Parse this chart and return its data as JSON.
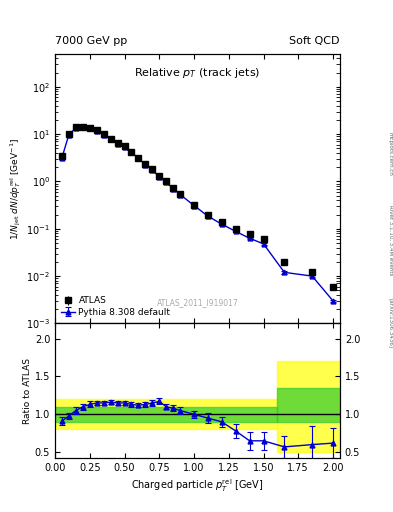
{
  "title_left": "7000 GeV pp",
  "title_right": "Soft QCD",
  "panel_title": "Relative p_{T} (track jets)",
  "xlabel": "Charged particle p_{T}^{rel} [GeV]",
  "ylabel_main": "1/N_{jet} dN/dp_{T}^{rel} [GeV^{-1}]",
  "ylabel_ratio": "Ratio to ATLAS",
  "right_label": "Rivet 3.1.10, 3.4M events",
  "arxiv_label": "[arXiv:1306.3436]",
  "mcplots_label": "mcplots.cern.ch",
  "watermark": "ATLAS_2011_I919017",
  "legend_atlas": "ATLAS",
  "legend_pythia": "Pythia 8.308 default",
  "atlas_x": [
    0.05,
    0.1,
    0.15,
    0.2,
    0.25,
    0.3,
    0.35,
    0.4,
    0.45,
    0.5,
    0.55,
    0.6,
    0.65,
    0.7,
    0.75,
    0.8,
    0.85,
    0.9,
    1.0,
    1.1,
    1.2,
    1.3,
    1.4,
    1.5,
    1.65,
    1.85,
    2.0
  ],
  "atlas_y": [
    3.5,
    10.0,
    14.0,
    14.5,
    13.5,
    12.0,
    10.0,
    8.0,
    6.5,
    5.5,
    4.2,
    3.2,
    2.3,
    1.8,
    1.3,
    1.0,
    0.72,
    0.55,
    0.32,
    0.2,
    0.14,
    0.1,
    0.078,
    0.062,
    0.02,
    0.012,
    0.006
  ],
  "atlas_yerr": [
    0.4,
    0.6,
    0.7,
    0.7,
    0.6,
    0.5,
    0.4,
    0.3,
    0.25,
    0.2,
    0.15,
    0.12,
    0.09,
    0.07,
    0.05,
    0.04,
    0.03,
    0.02,
    0.015,
    0.01,
    0.007,
    0.005,
    0.004,
    0.003,
    0.002,
    0.001,
    0.0006
  ],
  "pythia_x": [
    0.05,
    0.1,
    0.15,
    0.2,
    0.25,
    0.3,
    0.35,
    0.4,
    0.45,
    0.5,
    0.55,
    0.6,
    0.65,
    0.7,
    0.75,
    0.8,
    0.85,
    0.9,
    1.0,
    1.1,
    1.2,
    1.3,
    1.4,
    1.5,
    1.65,
    1.85,
    2.0
  ],
  "pythia_y": [
    3.2,
    9.8,
    13.5,
    14.2,
    13.2,
    11.8,
    9.8,
    7.8,
    6.3,
    5.3,
    4.1,
    3.1,
    2.25,
    1.75,
    1.25,
    0.97,
    0.7,
    0.53,
    0.31,
    0.185,
    0.125,
    0.088,
    0.063,
    0.048,
    0.012,
    0.01,
    0.003
  ],
  "pythia_yerr_lo": [
    0.1,
    0.2,
    0.3,
    0.3,
    0.25,
    0.2,
    0.2,
    0.15,
    0.12,
    0.1,
    0.08,
    0.06,
    0.05,
    0.04,
    0.03,
    0.025,
    0.02,
    0.015,
    0.01,
    0.007,
    0.005,
    0.003,
    0.002,
    0.0015,
    0.0008,
    0.0006,
    0.0002
  ],
  "pythia_yerr_hi": [
    0.1,
    0.2,
    0.3,
    0.3,
    0.25,
    0.2,
    0.2,
    0.15,
    0.12,
    0.1,
    0.08,
    0.06,
    0.05,
    0.04,
    0.03,
    0.025,
    0.02,
    0.015,
    0.01,
    0.007,
    0.005,
    0.003,
    0.002,
    0.0015,
    0.0008,
    0.0006,
    0.0002
  ],
  "ratio_x": [
    0.05,
    0.1,
    0.15,
    0.2,
    0.25,
    0.3,
    0.35,
    0.4,
    0.45,
    0.5,
    0.55,
    0.6,
    0.65,
    0.7,
    0.75,
    0.8,
    0.85,
    0.9,
    1.0,
    1.1,
    1.2,
    1.3,
    1.4,
    1.5,
    1.65,
    1.85,
    2.0
  ],
  "ratio_y": [
    0.91,
    0.98,
    1.05,
    1.1,
    1.13,
    1.15,
    1.15,
    1.16,
    1.15,
    1.15,
    1.13,
    1.12,
    1.13,
    1.15,
    1.17,
    1.1,
    1.08,
    1.05,
    1.0,
    0.95,
    0.9,
    0.78,
    0.65,
    0.65,
    0.57,
    0.6,
    0.62
  ],
  "ratio_yerr": [
    0.05,
    0.04,
    0.04,
    0.04,
    0.04,
    0.03,
    0.03,
    0.03,
    0.03,
    0.03,
    0.03,
    0.03,
    0.035,
    0.04,
    0.04,
    0.035,
    0.04,
    0.04,
    0.05,
    0.07,
    0.07,
    0.09,
    0.12,
    0.12,
    0.15,
    0.25,
    0.2
  ],
  "xlim": [
    0.0,
    2.05
  ],
  "ylim_main": [
    0.001,
    500.0
  ],
  "ylim_ratio": [
    0.42,
    2.2
  ],
  "ratio_yticks": [
    0.5,
    1.0,
    1.5,
    2.0
  ],
  "line_color": "#0000cc",
  "marker_color": "#000000",
  "marker_face_color": "#000000",
  "pythia_color": "#0000cc",
  "bg_color": "#ffffff"
}
